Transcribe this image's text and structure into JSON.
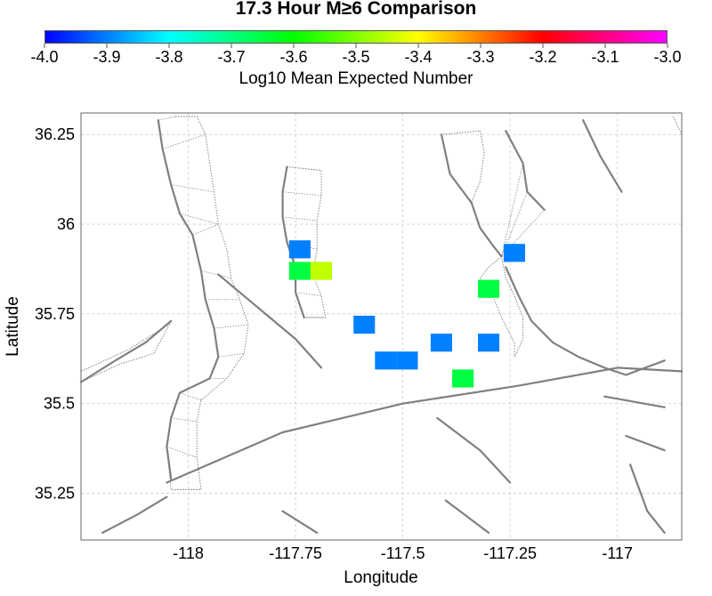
{
  "title": "17.3 Hour M≥6 Comparison",
  "colorbar": {
    "label": "Log10 Mean Expected Number",
    "min": -4.0,
    "max": -3.0,
    "ticks": [
      "-4.0",
      "-3.9",
      "-3.8",
      "-3.7",
      "-3.6",
      "-3.5",
      "-3.4",
      "-3.3",
      "-3.2",
      "-3.1",
      "-3.0"
    ],
    "colors": [
      "#0000ff",
      "#0080ff",
      "#00ffff",
      "#00ff80",
      "#00ff00",
      "#80ff00",
      "#ffff00",
      "#ff8000",
      "#ff0000",
      "#ff0080",
      "#ff00ff"
    ]
  },
  "chart_data": {
    "type": "heatmap",
    "xlabel": "Longitude",
    "ylabel": "Latitude",
    "xlim": [
      -118.25,
      -116.85
    ],
    "ylim": [
      35.12,
      36.31
    ],
    "x_ticks": [
      -118,
      -117.75,
      -117.5,
      -117.25,
      -117
    ],
    "x_tick_labels": [
      "-118",
      "-117.75",
      "-117.5",
      "-117.25",
      "-117"
    ],
    "y_ticks": [
      35.25,
      35.5,
      35.75,
      36,
      36.25
    ],
    "y_tick_labels": [
      "35.25",
      "35.5",
      "35.75",
      "36",
      "36.25"
    ],
    "grid": true,
    "cell_size": 0.05,
    "cells": [
      {
        "lon": -117.74,
        "lat": 35.93,
        "value": -3.9
      },
      {
        "lon": -117.74,
        "lat": 35.87,
        "value": -3.65
      },
      {
        "lon": -117.69,
        "lat": 35.87,
        "value": -3.45
      },
      {
        "lon": -117.59,
        "lat": 35.72,
        "value": -3.9
      },
      {
        "lon": -117.54,
        "lat": 35.62,
        "value": -3.9
      },
      {
        "lon": -117.49,
        "lat": 35.62,
        "value": -3.9
      },
      {
        "lon": -117.41,
        "lat": 35.67,
        "value": -3.9
      },
      {
        "lon": -117.36,
        "lat": 35.57,
        "value": -3.65
      },
      {
        "lon": -117.3,
        "lat": 35.82,
        "value": -3.65
      },
      {
        "lon": -117.3,
        "lat": 35.67,
        "value": -3.9
      },
      {
        "lon": -117.24,
        "lat": 35.92,
        "value": -3.9
      }
    ],
    "faults": [
      [
        [
          -118.07,
          36.29
        ],
        [
          -118.06,
          36.21
        ],
        [
          -118.04,
          36.11
        ],
        [
          -118.02,
          36.03
        ],
        [
          -117.99,
          35.97
        ],
        [
          -117.97,
          35.87
        ],
        [
          -117.96,
          35.79
        ],
        [
          -117.94,
          35.71
        ],
        [
          -117.93,
          35.63
        ],
        [
          -117.95,
          35.57
        ],
        [
          -118.02,
          35.53
        ],
        [
          -118.04,
          35.46
        ],
        [
          -118.05,
          35.38
        ],
        [
          -118.04,
          35.29
        ]
      ],
      [
        [
          -117.77,
          36.16
        ],
        [
          -117.78,
          36.09
        ],
        [
          -117.78,
          36.02
        ],
        [
          -117.77,
          35.95
        ],
        [
          -117.75,
          35.88
        ],
        [
          -117.75,
          35.81
        ],
        [
          -117.73,
          35.74
        ]
      ],
      [
        [
          -117.93,
          35.86
        ],
        [
          -117.87,
          35.8
        ],
        [
          -117.81,
          35.74
        ],
        [
          -117.75,
          35.68
        ],
        [
          -117.69,
          35.6
        ]
      ],
      [
        [
          -117.41,
          36.25
        ],
        [
          -117.39,
          36.14
        ],
        [
          -117.34,
          36.06
        ],
        [
          -117.32,
          35.99
        ],
        [
          -117.29,
          35.94
        ],
        [
          -117.27,
          35.91
        ]
      ],
      [
        [
          -117.26,
          36.26
        ],
        [
          -117.22,
          36.17
        ],
        [
          -117.21,
          36.09
        ],
        [
          -117.17,
          36.04
        ]
      ],
      [
        [
          -117.08,
          36.29
        ],
        [
          -117.04,
          36.19
        ],
        [
          -116.99,
          36.09
        ]
      ],
      [
        [
          -118.25,
          35.56
        ],
        [
          -118.17,
          35.62
        ],
        [
          -118.1,
          35.67
        ],
        [
          -118.04,
          35.73
        ]
      ],
      [
        [
          -118.05,
          35.28
        ],
        [
          -117.78,
          35.42
        ],
        [
          -117.5,
          35.5
        ],
        [
          -117.23,
          35.55
        ],
        [
          -117.0,
          35.6
        ],
        [
          -116.85,
          35.59
        ]
      ],
      [
        [
          -117.26,
          35.88
        ],
        [
          -117.23,
          35.8
        ],
        [
          -117.2,
          35.73
        ],
        [
          -117.15,
          35.67
        ],
        [
          -117.09,
          35.63
        ],
        [
          -117.03,
          35.6
        ],
        [
          -116.98,
          35.58
        ],
        [
          -116.89,
          35.62
        ]
      ],
      [
        [
          -118.2,
          35.14
        ],
        [
          -118.12,
          35.19
        ],
        [
          -118.05,
          35.24
        ]
      ],
      [
        [
          -117.78,
          35.2
        ],
        [
          -117.7,
          35.14
        ]
      ],
      [
        [
          -117.42,
          35.46
        ],
        [
          -117.32,
          35.37
        ],
        [
          -117.25,
          35.28
        ]
      ],
      [
        [
          -117.4,
          35.23
        ],
        [
          -117.3,
          35.14
        ]
      ],
      [
        [
          -117.03,
          35.52
        ],
        [
          -116.89,
          35.49
        ]
      ],
      [
        [
          -116.98,
          35.41
        ],
        [
          -116.89,
          35.37
        ]
      ],
      [
        [
          -116.97,
          35.33
        ],
        [
          -116.93,
          35.2
        ],
        [
          -116.89,
          35.14
        ]
      ]
    ],
    "fault_zones": [
      [
        [
          -118.03,
          36.3
        ],
        [
          -117.98,
          36.3
        ],
        [
          -117.96,
          36.25
        ],
        [
          -117.95,
          36.17
        ],
        [
          -117.94,
          36.09
        ],
        [
          -117.93,
          36.0
        ],
        [
          -117.91,
          35.93
        ],
        [
          -117.9,
          35.85
        ],
        [
          -117.88,
          35.79
        ],
        [
          -117.86,
          35.72
        ],
        [
          -117.87,
          35.64
        ],
        [
          -117.91,
          35.57
        ],
        [
          -117.97,
          35.51
        ],
        [
          -117.98,
          35.45
        ],
        [
          -117.98,
          35.35
        ],
        [
          -117.97,
          35.26
        ],
        [
          -118.04,
          35.26
        ],
        [
          -118.05,
          35.38
        ],
        [
          -118.04,
          35.46
        ],
        [
          -118.02,
          35.53
        ],
        [
          -117.95,
          35.57
        ],
        [
          -117.93,
          35.63
        ],
        [
          -117.94,
          35.71
        ],
        [
          -117.96,
          35.79
        ],
        [
          -117.97,
          35.87
        ],
        [
          -117.99,
          35.97
        ],
        [
          -118.02,
          36.03
        ],
        [
          -118.04,
          36.11
        ],
        [
          -118.06,
          36.21
        ],
        [
          -118.07,
          36.29
        ]
      ],
      [
        [
          -117.77,
          36.16
        ],
        [
          -117.69,
          36.15
        ],
        [
          -117.69,
          36.08
        ],
        [
          -117.7,
          36.01
        ],
        [
          -117.7,
          35.93
        ],
        [
          -117.71,
          35.86
        ],
        [
          -117.69,
          35.8
        ],
        [
          -117.68,
          35.74
        ],
        [
          -117.73,
          35.74
        ],
        [
          -117.75,
          35.81
        ],
        [
          -117.75,
          35.88
        ],
        [
          -117.77,
          35.95
        ],
        [
          -117.78,
          36.02
        ],
        [
          -117.78,
          36.09
        ],
        [
          -117.77,
          36.16
        ]
      ],
      [
        [
          -117.32,
          36.26
        ],
        [
          -117.31,
          36.2
        ],
        [
          -117.32,
          36.12
        ],
        [
          -117.34,
          36.06
        ],
        [
          -117.39,
          36.14
        ],
        [
          -117.41,
          36.25
        ],
        [
          -117.32,
          36.26
        ]
      ],
      [
        [
          -117.27,
          35.91
        ],
        [
          -117.3,
          35.88
        ],
        [
          -117.32,
          35.85
        ],
        [
          -117.29,
          35.8
        ],
        [
          -117.27,
          35.74
        ],
        [
          -117.24,
          35.67
        ],
        [
          -117.24,
          35.63
        ],
        [
          -117.22,
          35.68
        ],
        [
          -117.22,
          35.74
        ],
        [
          -117.24,
          35.8
        ],
        [
          -117.26,
          35.85
        ],
        [
          -117.27,
          35.91
        ]
      ],
      [
        [
          -118.25,
          35.59
        ],
        [
          -118.14,
          35.65
        ],
        [
          -118.06,
          35.71
        ],
        [
          -118.04,
          35.73
        ],
        [
          -118.08,
          35.64
        ],
        [
          -118.16,
          35.61
        ],
        [
          -118.25,
          35.56
        ]
      ],
      [
        [
          -116.87,
          36.3
        ],
        [
          -116.85,
          36.25
        ]
      ]
    ]
  }
}
